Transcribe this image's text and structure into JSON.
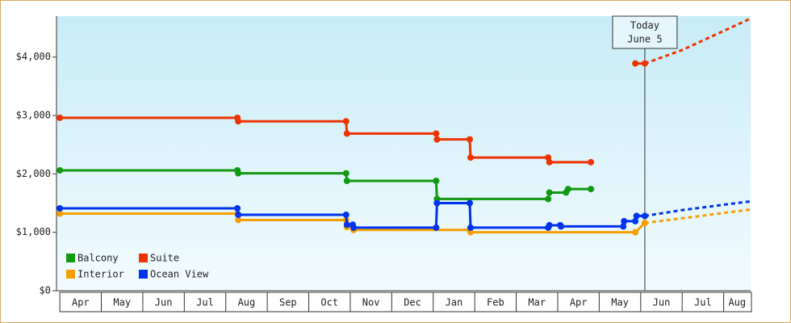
{
  "chart_data": {
    "type": "line",
    "xlim": [
      -0.08,
      16.65
    ],
    "ylim": [
      0,
      4700
    ],
    "xticks": [
      {
        "value": 0.5,
        "label": "Apr"
      },
      {
        "value": 1.5,
        "label": "May"
      },
      {
        "value": 2.5,
        "label": "Jun"
      },
      {
        "value": 3.5,
        "label": "Jul"
      },
      {
        "value": 4.5,
        "label": "Aug"
      },
      {
        "value": 5.5,
        "label": "Sep"
      },
      {
        "value": 6.5,
        "label": "Oct"
      },
      {
        "value": 7.5,
        "label": "Nov"
      },
      {
        "value": 8.5,
        "label": "Dec"
      },
      {
        "value": 9.5,
        "label": "Jan"
      },
      {
        "value": 10.5,
        "label": "Feb"
      },
      {
        "value": 11.5,
        "label": "Mar"
      },
      {
        "value": 12.5,
        "label": "Apr"
      },
      {
        "value": 13.5,
        "label": "May"
      },
      {
        "value": 14.5,
        "label": "Jun"
      },
      {
        "value": 15.5,
        "label": "Jul"
      },
      {
        "value": 16.5,
        "label": "Aug"
      }
    ],
    "yticks": [
      {
        "value": 0,
        "label": "$0"
      },
      {
        "value": 1000,
        "label": "$1,000"
      },
      {
        "value": 2000,
        "label": "$2,000"
      },
      {
        "value": 3000,
        "label": "$3,000"
      },
      {
        "value": 4000,
        "label": "$4,000"
      }
    ],
    "today": {
      "x": 14.1,
      "label": [
        "Today",
        "June 5"
      ]
    },
    "legend": "lower left",
    "series": [
      {
        "name": "Balcony",
        "color": "#119911",
        "x": [
          0,
          4.28,
          4.3,
          6.9,
          6.92,
          9.07,
          9.09,
          11.77,
          11.8,
          12.2,
          12.25,
          12.8
        ],
        "values": [
          2060,
          2060,
          2010,
          2010,
          1880,
          1880,
          1570,
          1570,
          1680,
          1680,
          1740,
          1740
        ]
      },
      {
        "name": "Suite",
        "color": "#ee3300",
        "x": [
          0,
          4.28,
          4.3,
          6.9,
          6.92,
          9.07,
          9.09,
          9.88,
          9.9,
          11.77,
          11.8,
          12.8,
          13.3,
          13.87,
          14.1
        ],
        "values": [
          2960,
          2960,
          2900,
          2900,
          2690,
          2690,
          2590,
          2590,
          2280,
          2280,
          2200,
          2200,
          null,
          3890,
          3890
        ],
        "forecast": {
          "x": [
            14.1,
            15,
            16.65
          ],
          "values": [
            3890,
            4120,
            4660
          ]
        }
      },
      {
        "name": "Interior",
        "color": "#f5a000",
        "x": [
          0,
          4.28,
          4.3,
          6.9,
          6.92,
          7.06,
          7.08,
          9.88,
          9.9,
          13.87,
          14.1
        ],
        "values": [
          1320,
          1320,
          1210,
          1210,
          1090,
          1090,
          1040,
          1040,
          1000,
          1000,
          1160
        ],
        "forecast": {
          "x": [
            14.1,
            15,
            16.65
          ],
          "values": [
            1160,
            1240,
            1390
          ]
        }
      },
      {
        "name": "Ocean View",
        "color": "#0033ee",
        "x": [
          0,
          4.28,
          4.3,
          6.9,
          6.92,
          7.06,
          7.08,
          9.07,
          9.09,
          9.88,
          9.9,
          11.77,
          11.8,
          12.06,
          12.08,
          13.58,
          13.6,
          13.87,
          13.9,
          14.1
        ],
        "values": [
          1410,
          1410,
          1300,
          1300,
          1130,
          1130,
          1080,
          1080,
          1500,
          1500,
          1080,
          1080,
          1120,
          1120,
          1100,
          1100,
          1190,
          1190,
          1280,
          1280
        ],
        "forecast": {
          "x": [
            14.1,
            15,
            16.65
          ],
          "values": [
            1280,
            1380,
            1530
          ]
        }
      }
    ]
  }
}
